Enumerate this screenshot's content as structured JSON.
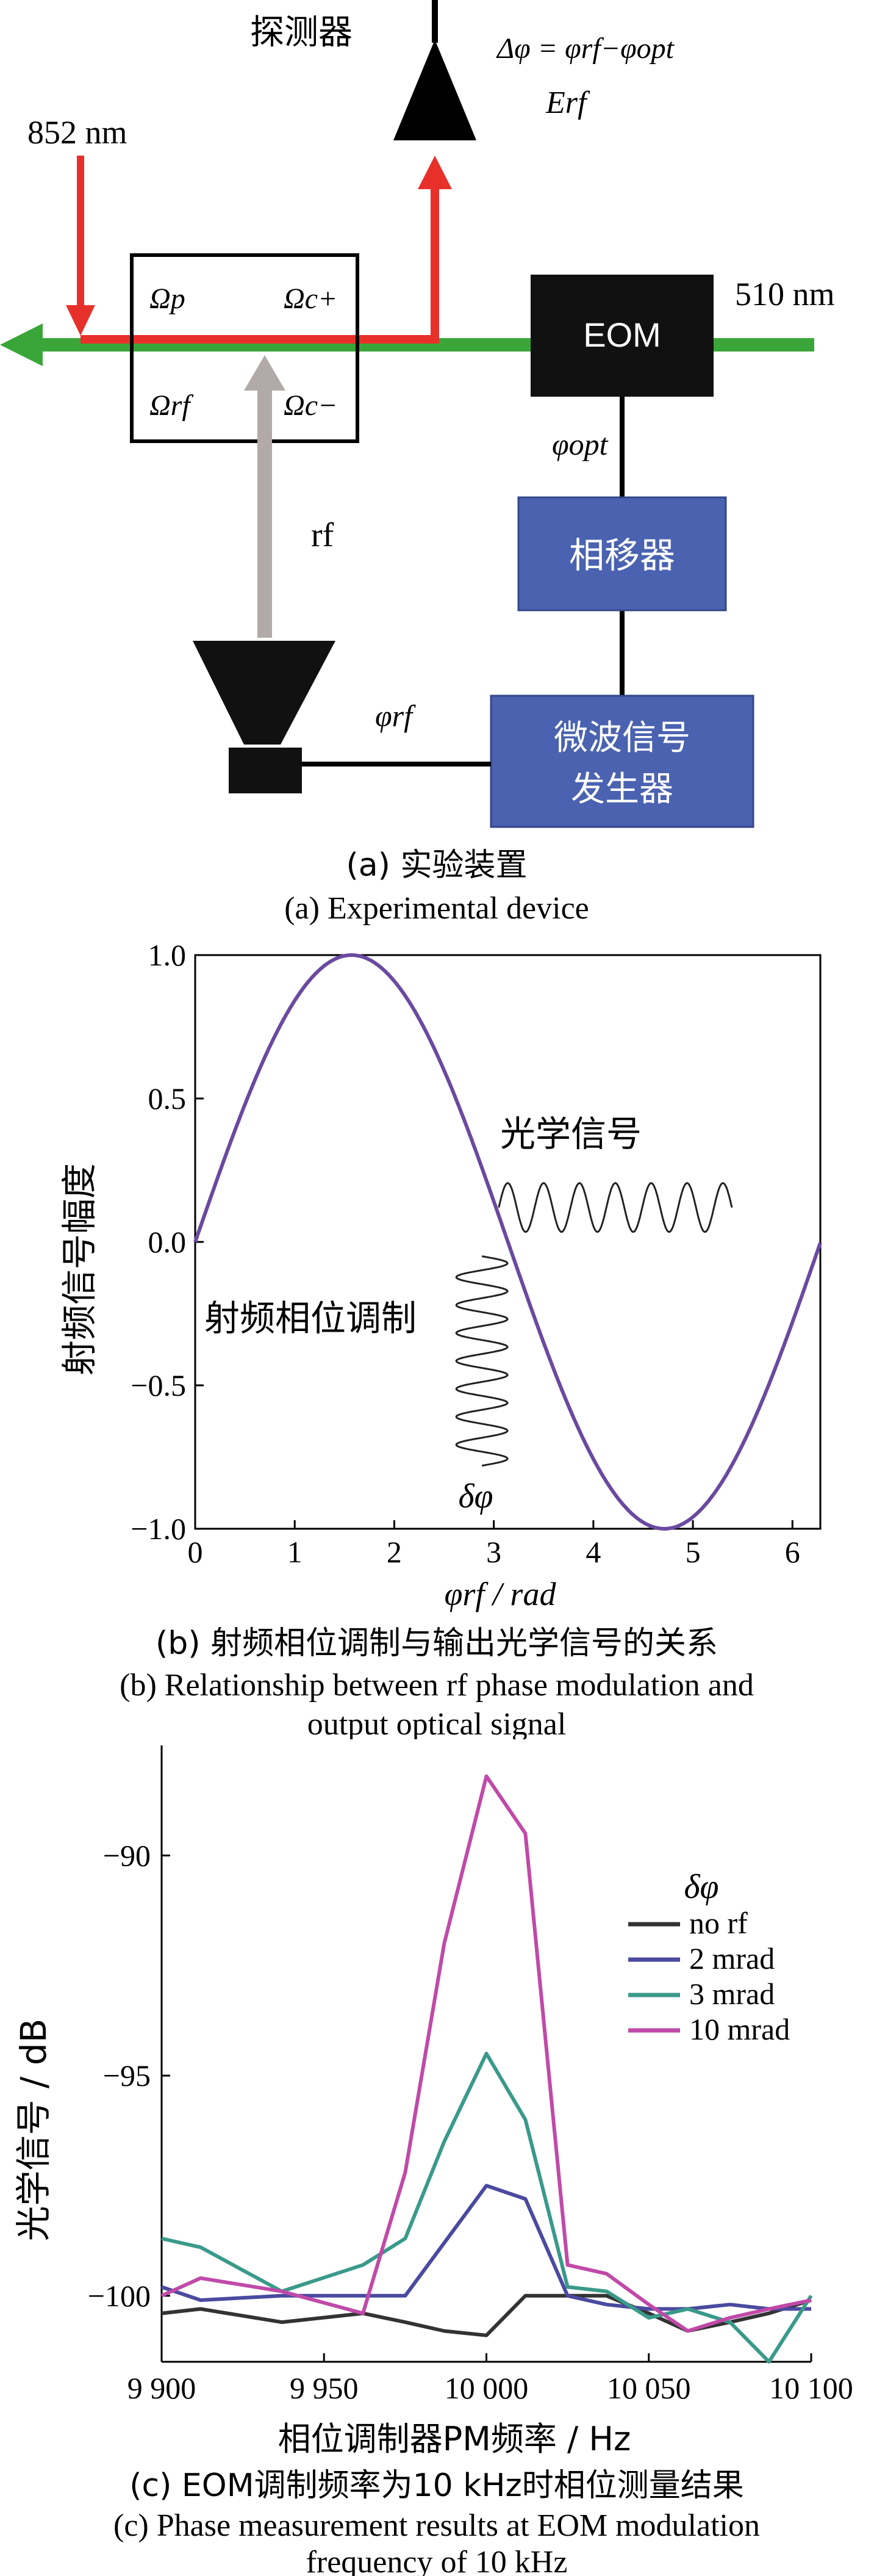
{
  "panel_a": {
    "detector_label": "探测器",
    "phase_diff_formula": "Δφ = φrf−φopt",
    "field_label": "Erf",
    "probe_wavelength": "852 nm",
    "coupling_wavelength": "510 nm",
    "eom_label": "EOM",
    "omega_p": "Ωp",
    "omega_c_plus": "Ωc+",
    "omega_rf": "Ωrf",
    "omega_c_minus": "Ωc−",
    "phi_opt": "φopt",
    "phase_shifter_label": "相移器",
    "rf_label": "rf",
    "phi_rf": "φrf",
    "generator_line1": "微波信号",
    "generator_line2": "发生器",
    "caption_zh": "(a) 实验装置",
    "caption_en": "(a) Experimental device",
    "colors": {
      "probe_red": "#e8302a",
      "coupling_green": "#3aa63a",
      "rf_gray": "#b2aaa8",
      "box_blue": "#4a62b0"
    }
  },
  "chart_b": {
    "type": "line",
    "ylabel": "射频信号幅度",
    "xlabel": "φrf / rad",
    "x_ticks": [
      "0",
      "1",
      "2",
      "3",
      "4",
      "5",
      "6"
    ],
    "y_ticks": [
      "1.0",
      "0.5",
      "0.0",
      "−0.5",
      "−1.0"
    ],
    "xlim": [
      0,
      6.28
    ],
    "ylim": [
      -1.0,
      1.0
    ],
    "series": [
      {
        "function": "sin(x)",
        "x_range": [
          0,
          6.28
        ],
        "color": "#6a4aa0"
      }
    ],
    "annotations": {
      "optical_signal": "光学信号",
      "rf_phase_modulation": "射频相位调制",
      "delta_phi": "δφ"
    },
    "caption_zh": "(b) 射频相位调制与输出光学信号的关系",
    "caption_en_line1": "(b) Relationship between rf phase modulation and",
    "caption_en_line2": "output optical signal"
  },
  "chart_c": {
    "type": "line",
    "ylabel": "光学信号 / dB",
    "xlabel": "相位调制器PM频率 / Hz",
    "x_ticks": [
      "9 900",
      "9 950",
      "10 000",
      "10 050",
      "10 100"
    ],
    "x_tick_values": [
      9900,
      9950,
      10000,
      10050,
      10100
    ],
    "y_ticks": [
      "−90",
      "−95",
      "−100"
    ],
    "y_tick_values": [
      -90,
      -95,
      -100
    ],
    "xlim": [
      9900,
      10100
    ],
    "ylim": [
      -101.5,
      -87.5
    ],
    "legend_title": "δφ",
    "legend_position": "top-right",
    "x": [
      9900,
      9912,
      9937,
      9962,
      9975,
      9987,
      10000,
      10012,
      10025,
      10037,
      10050,
      10062,
      10075,
      10087,
      10100
    ],
    "series": [
      {
        "name": "no rf",
        "color": "#333333",
        "values": [
          -100.4,
          -100.3,
          -100.6,
          -100.4,
          -100.6,
          -100.8,
          -100.9,
          -100.0,
          -100.0,
          -100.0,
          -100.4,
          -100.8,
          -100.6,
          -100.4,
          -100.1
        ]
      },
      {
        "name": "2 mrad",
        "color": "#4a4aa0",
        "values": [
          -99.8,
          -100.1,
          -100.0,
          -100.0,
          -100.0,
          -98.8,
          -97.5,
          -97.8,
          -100.0,
          -100.2,
          -100.3,
          -100.3,
          -100.2,
          -100.3,
          -100.3
        ]
      },
      {
        "name": "3 mrad",
        "color": "#3a9a8a",
        "values": [
          -98.7,
          -98.9,
          -99.9,
          -99.3,
          -98.7,
          -96.5,
          -94.5,
          -96.0,
          -99.8,
          -99.9,
          -100.5,
          -100.3,
          -100.6,
          -101.5,
          -100.0
        ]
      },
      {
        "name": "10 mrad",
        "color": "#c04aa8",
        "values": [
          -100.0,
          -99.6,
          -99.9,
          -100.4,
          -97.2,
          -92.0,
          -88.2,
          -89.5,
          -99.3,
          -99.5,
          -100.2,
          -100.8,
          -100.5,
          -100.3,
          -100.1
        ]
      }
    ],
    "caption_zh": "(c) EOM调制频率为10 kHz时相位测量结果",
    "caption_en_line1": "(c) Phase measurement results at EOM modulation",
    "caption_en_line2": "frequency of 10 kHz"
  }
}
